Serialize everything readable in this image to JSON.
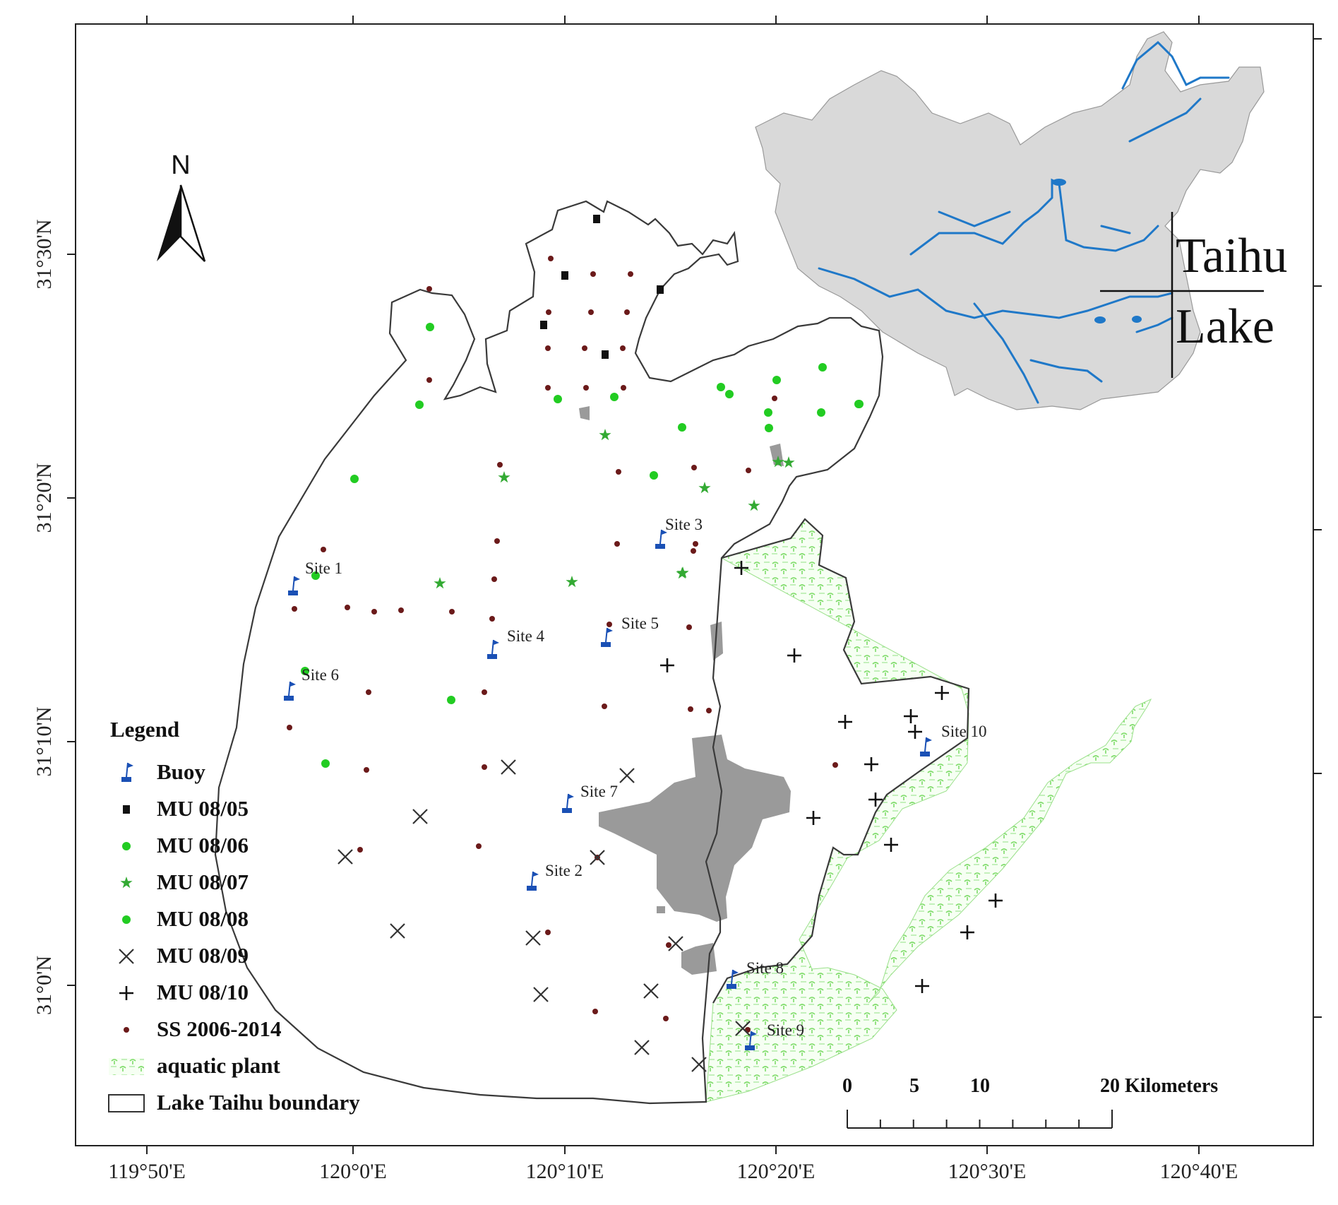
{
  "colors": {
    "lake_boundary": "#3a3a3a",
    "china_land": "#d9d9d9",
    "china_rivers": "#1f78c8",
    "aquatic_plant": "#7fdc6a",
    "urban_gray": "#9a9a9a",
    "buoy": "#1a50b5",
    "mu_0805": "#111111",
    "mu_0806": "#22cc22",
    "mu_0807": "#33aa33",
    "mu_0808": "#22cc22",
    "mu_0809": "#333333",
    "mu_0810": "#111111",
    "ss": "#6b1a1a"
  },
  "north_arrow": {
    "label": "N"
  },
  "lon_labels": [
    "119°50'E",
    "120°0'E",
    "120°10'E",
    "120°20'E",
    "120°30'E",
    "120°40'E"
  ],
  "lat_labels": [
    "31°30'N",
    "31°20'N",
    "31°10'N",
    "31°0'N"
  ],
  "inset": {
    "title_line1": "Taihu",
    "title_line2": "Lake"
  },
  "legend": {
    "title": "Legend",
    "items": [
      {
        "symbol": "buoy",
        "label": "Buoy"
      },
      {
        "symbol": "square",
        "label": "MU 08/05"
      },
      {
        "symbol": "dot-green",
        "label": "MU 08/06"
      },
      {
        "symbol": "star",
        "label": "MU 08/07"
      },
      {
        "symbol": "dot-green",
        "label": "MU 08/08"
      },
      {
        "symbol": "x",
        "label": "MU 08/09"
      },
      {
        "symbol": "plus",
        "label": "MU 08/10"
      },
      {
        "symbol": "dot-brown",
        "label": "SS 2006-2014"
      },
      {
        "symbol": "plant",
        "label": "aquatic plant"
      },
      {
        "symbol": "box",
        "label": "Lake Taihu boundary"
      }
    ]
  },
  "scale_bar": {
    "labels": [
      "0",
      "5",
      "10",
      "20 Kilometers"
    ],
    "km_values": [
      0,
      5,
      10,
      20
    ]
  },
  "sites": [
    {
      "name": "Site 1"
    },
    {
      "name": "Site 2"
    },
    {
      "name": "Site 3"
    },
    {
      "name": "Site 4"
    },
    {
      "name": "Site 5"
    },
    {
      "name": "Site 6"
    },
    {
      "name": "Site 7"
    },
    {
      "name": "Site 8"
    },
    {
      "name": "Site 9"
    },
    {
      "name": "Site 10"
    }
  ]
}
